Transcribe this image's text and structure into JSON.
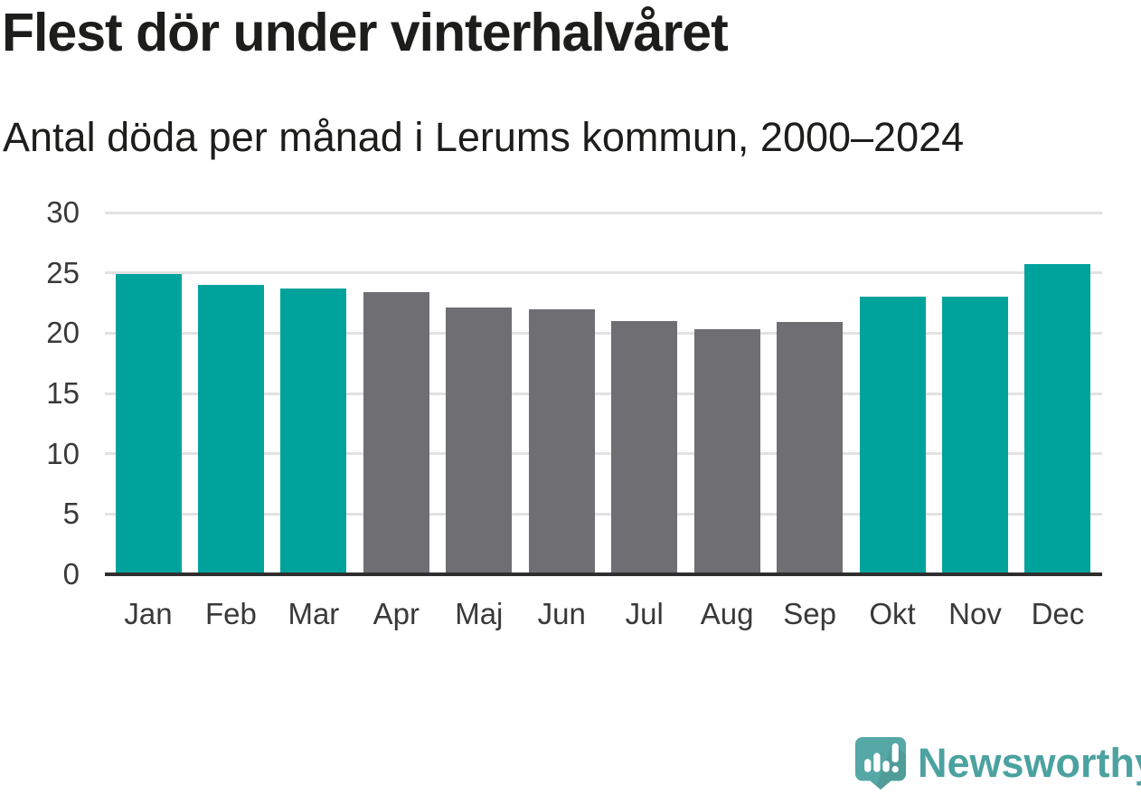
{
  "title": "Flest dör under vinterhalvåret",
  "subtitle": "Antal döda per månad i Lerums kommun, 2000–2024",
  "branding": {
    "logo_text": "Newsworthy",
    "wordmark_color": "#4ba2a0",
    "icon_color": "#55a8a5"
  },
  "chart_data": {
    "type": "bar",
    "title": "Flest dör under vinterhalvåret",
    "subtitle": "Antal döda per månad i Lerums kommun, 2000–2024",
    "categories": [
      "Jan",
      "Feb",
      "Mar",
      "Apr",
      "Maj",
      "Jun",
      "Jul",
      "Aug",
      "Sep",
      "Okt",
      "Nov",
      "Dec"
    ],
    "values": [
      24.9,
      24.0,
      23.7,
      23.4,
      22.1,
      22.0,
      21.0,
      20.3,
      20.9,
      23.0,
      23.0,
      25.7
    ],
    "bar_color_keys": [
      "teal",
      "teal",
      "teal",
      "gray",
      "gray",
      "gray",
      "gray",
      "gray",
      "gray",
      "teal",
      "teal",
      "teal"
    ],
    "colors": {
      "teal": "#00a39b",
      "gray": "#6e6e73"
    },
    "xlabel": "",
    "ylabel": "",
    "ylim": [
      0,
      30
    ],
    "yticks": [
      0,
      5,
      10,
      15,
      20,
      25,
      30
    ],
    "grid": true,
    "legend": "none",
    "axis_color": "#2e2e2e",
    "gridline_color": "#e2e2e2",
    "tick_label_color": "#393939"
  }
}
